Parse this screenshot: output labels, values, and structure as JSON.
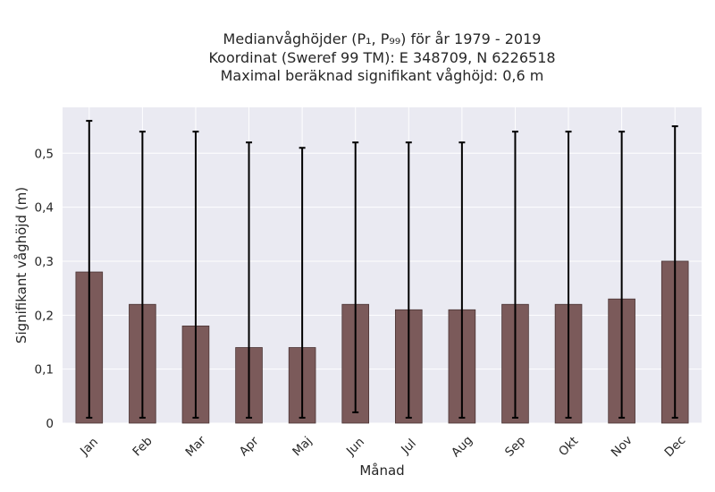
{
  "chart_data": {
    "type": "bar",
    "title_lines": [
      "Medianvåghöjder (P₁, P₉₉) för år 1979 - 2019",
      "Koordinat (Sweref 99 TM): E 348709, N 6226518",
      "Maximal beräknad signifikant våghöjd: 0,6 m"
    ],
    "xlabel": "Månad",
    "ylabel": "Signifikant våghöjd (m)",
    "categories": [
      "Jan",
      "Feb",
      "Mar",
      "Apr",
      "Maj",
      "Jun",
      "Jul",
      "Aug",
      "Sep",
      "Okt",
      "Nov",
      "Dec"
    ],
    "series": [
      {
        "values": [
          0.28,
          0.22,
          0.18,
          0.14,
          0.14,
          0.22,
          0.21,
          0.21,
          0.22,
          0.22,
          0.23,
          0.3
        ],
        "p1": [
          0.01,
          0.01,
          0.01,
          0.01,
          0.01,
          0.02,
          0.01,
          0.01,
          0.01,
          0.01,
          0.01,
          0.01
        ],
        "p99": [
          0.56,
          0.54,
          0.54,
          0.52,
          0.51,
          0.52,
          0.52,
          0.52,
          0.54,
          0.54,
          0.54,
          0.55
        ]
      }
    ],
    "ylim": [
      0,
      0.585
    ],
    "yticks": [
      0,
      0.1,
      0.2,
      0.3,
      0.4,
      0.5
    ],
    "ytick_labels": [
      "0",
      "0,1",
      "0,2",
      "0,3",
      "0,4",
      "0,5"
    ],
    "grid": true,
    "colors": {
      "bar": "#7b5a5a",
      "bar_edge": "#4a3434",
      "errorbar": "#000000",
      "plot_background": "#eaeaf2",
      "grid": "#ffffff"
    }
  }
}
